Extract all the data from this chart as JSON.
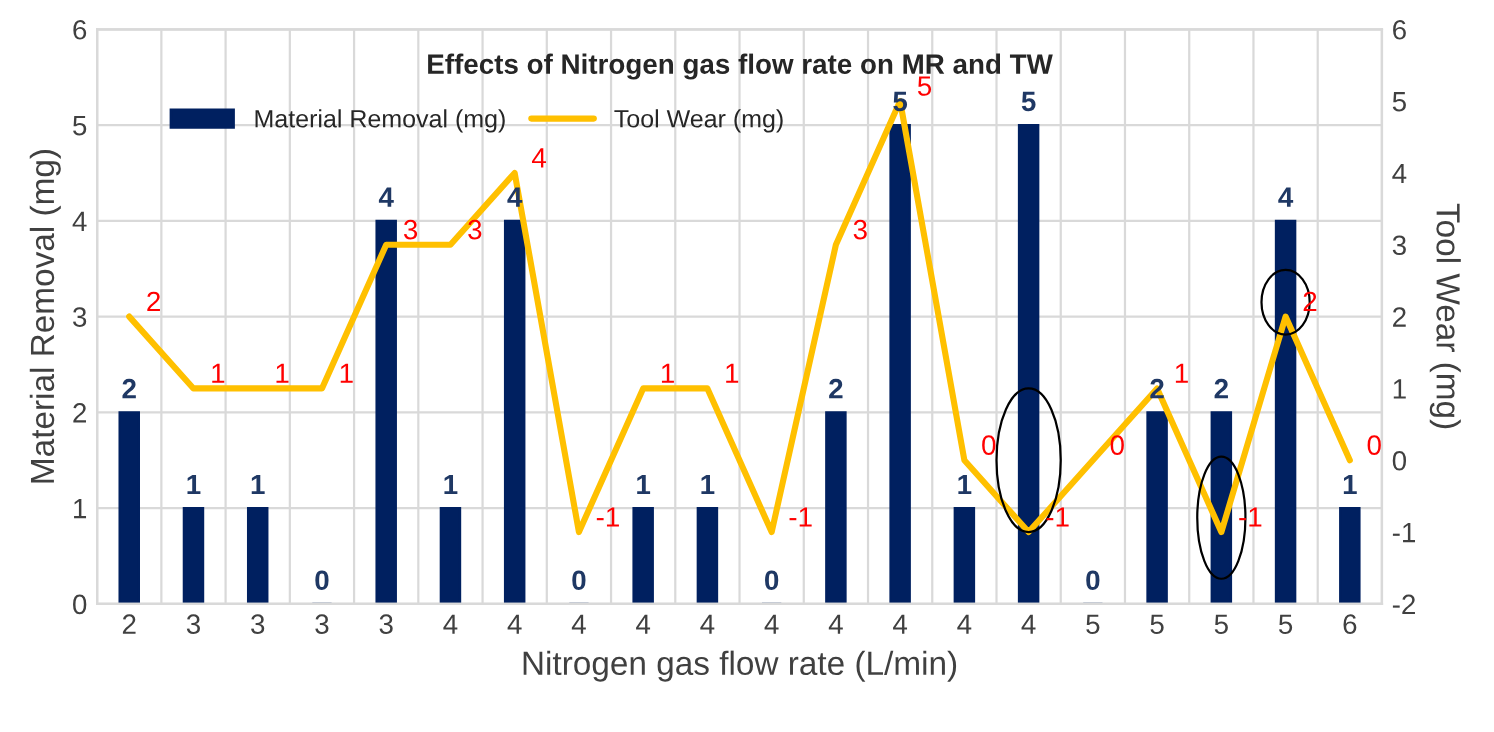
{
  "chart_data": {
    "type": "bar",
    "title": "Effects of Nitrogen gas flow rate on MR and TW",
    "xlabel": "Nitrogen gas flow rate (L/min)",
    "ylabel": "Material Removal (mg)",
    "y2label": "Tool Wear (mg)",
    "categories": [
      "2",
      "3",
      "3",
      "3",
      "3",
      "4",
      "4",
      "4",
      "4",
      "4",
      "4",
      "4",
      "4",
      "4",
      "4",
      "5",
      "5",
      "5",
      "5",
      "6"
    ],
    "series": [
      {
        "name": "Material Removal (mg)",
        "color": "#002060",
        "values": [
          2,
          1,
          1,
          0,
          4,
          1,
          4,
          0,
          1,
          1,
          0,
          2,
          5,
          1,
          5,
          0,
          2,
          2,
          4,
          1
        ]
      },
      {
        "name": "Tool Wear (mg)",
        "type": "line",
        "axis": "y2",
        "color": "#ffc000",
        "values": [
          2,
          1,
          1,
          1,
          3,
          3,
          4,
          -1,
          1,
          1,
          -1,
          3,
          5,
          0,
          -1,
          0,
          1,
          -1,
          2,
          0
        ]
      }
    ],
    "ylim": [
      0,
      6
    ],
    "yticks": [
      0,
      1,
      2,
      3,
      4,
      5,
      6
    ],
    "y2lim": [
      -2,
      6
    ],
    "y2ticks": [
      -2,
      -1,
      0,
      1,
      2,
      3,
      4,
      5,
      6
    ],
    "grid": true,
    "legend": "top left",
    "data_labels": true,
    "marker": "none",
    "line_style": "solid"
  }
}
